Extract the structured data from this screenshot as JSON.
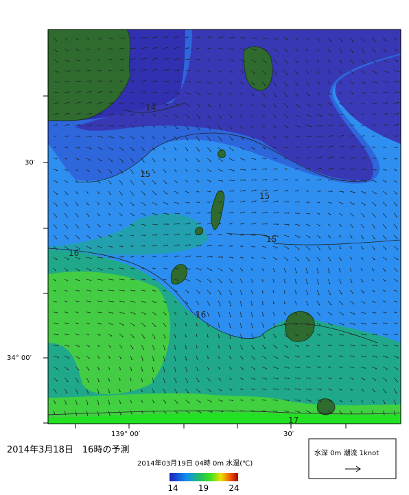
{
  "map": {
    "lat_labels": [
      "30′",
      "34° 00′"
    ],
    "lon_labels": [
      "139° 00′",
      "30′"
    ],
    "contour_labels": [
      "14",
      "15",
      "15",
      "15",
      "16",
      "16",
      "17"
    ]
  },
  "caption": "2014年3月18日　16時の予測",
  "legend": {
    "title": "2014年03月19日 04時 0m 水温(℃)",
    "ticks": [
      14,
      19,
      24
    ]
  },
  "key": {
    "label": "水深 0m 潮流 1knot"
  }
}
